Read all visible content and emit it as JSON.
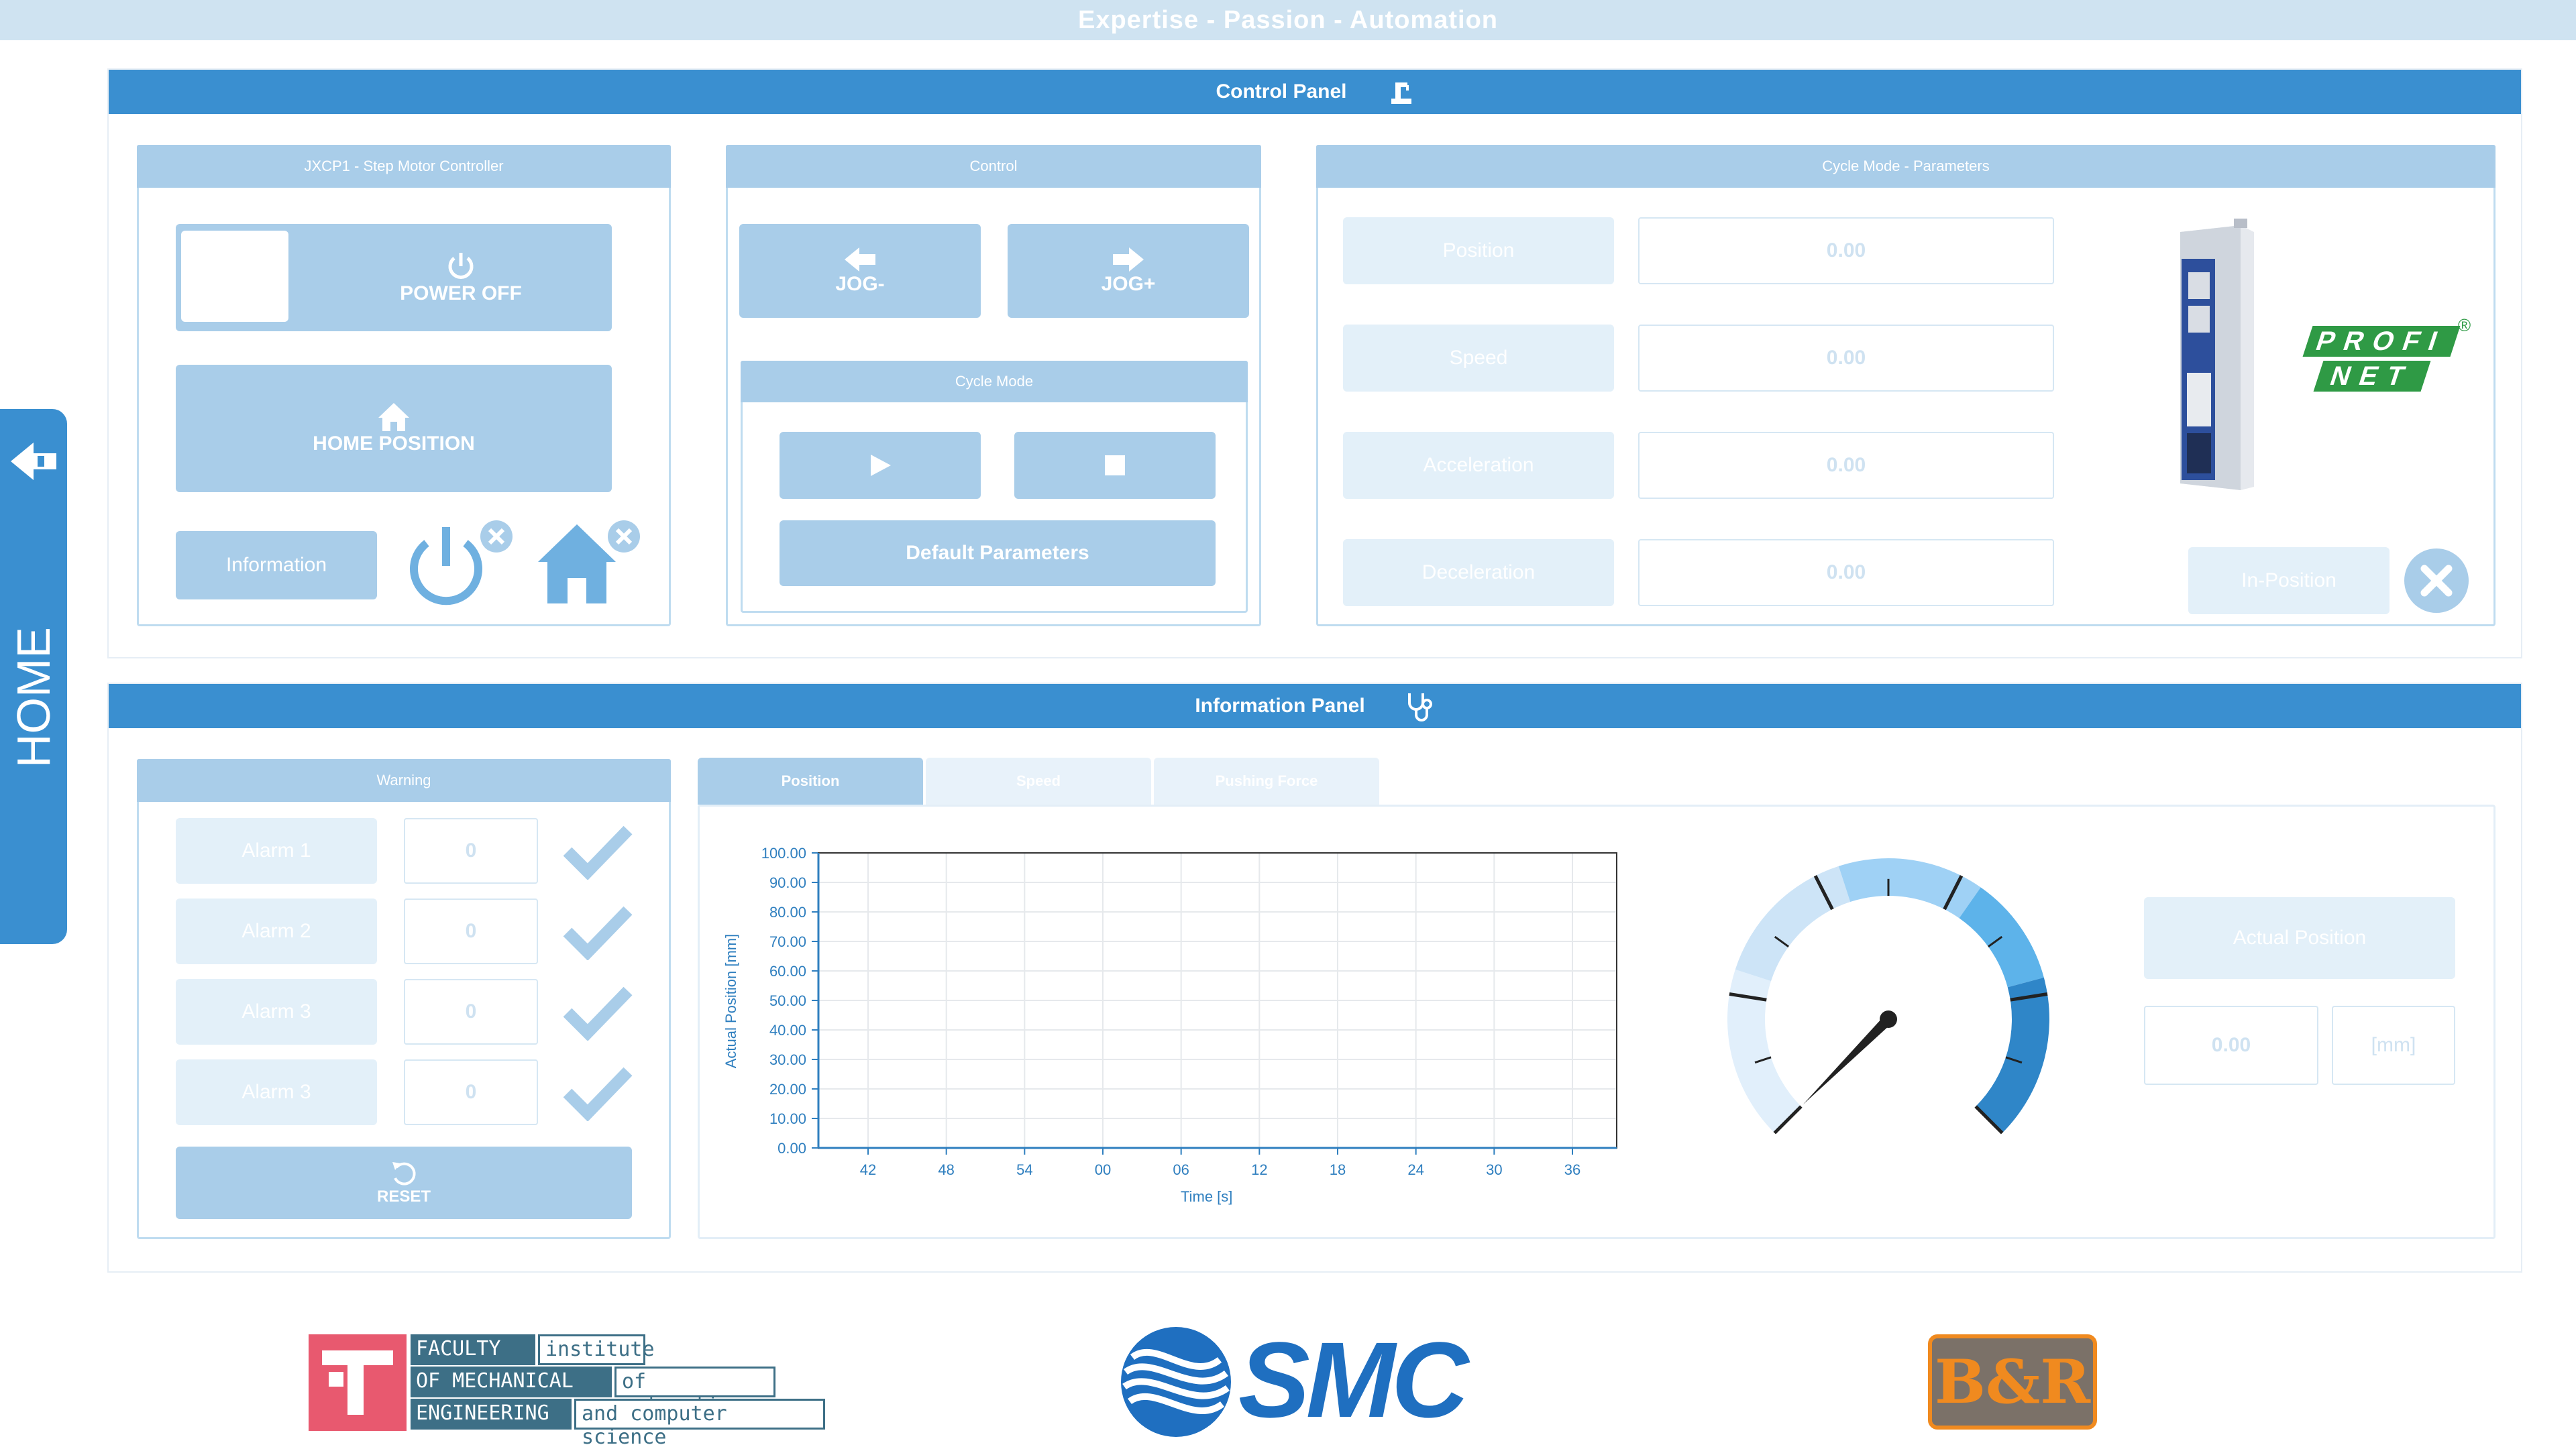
{
  "banner": {
    "text": "Expertise - Passion - Automation"
  },
  "side_tab": {
    "label": "HOME",
    "icon": "home-back-icon"
  },
  "control_panel": {
    "title": "Control Panel",
    "icon": "robot-arm-icon",
    "controller": {
      "title": "JXCP1 - Step Motor Controller",
      "power_button": "POWER OFF",
      "home_button": "HOME POSITION",
      "info_button": "Information",
      "power_status_icon": "power-status-icon",
      "home_status_icon": "home-status-icon"
    },
    "control": {
      "title": "Control",
      "jog_minus": "JOG-",
      "jog_plus": "JOG+",
      "cycle_mode_title": "Cycle Mode",
      "play_icon": "play-icon",
      "stop_icon": "stop-icon",
      "default_params": "Default Parameters"
    },
    "cycle_params": {
      "title": "Cycle Mode - Parameters",
      "rows": [
        {
          "label": "Position",
          "value": "0.00"
        },
        {
          "label": "Speed",
          "value": "0.00"
        },
        {
          "label": "Acceleration",
          "value": "0.00"
        },
        {
          "label": "Deceleration",
          "value": "0.00"
        }
      ],
      "in_position": "In-Position",
      "profinet_top": "PROFI",
      "profinet_bottom": "NET",
      "registered": "®"
    }
  },
  "information_panel": {
    "title": "Information Panel",
    "icon": "stethoscope-icon",
    "warning": {
      "title": "Warning",
      "alarms": [
        {
          "label": "Alarm 1",
          "value": "0"
        },
        {
          "label": "Alarm 2",
          "value": "0"
        },
        {
          "label": "Alarm 3",
          "value": "0"
        },
        {
          "label": "Alarm 3",
          "value": "0"
        }
      ],
      "reset": "RESET"
    },
    "tabs": [
      "Position",
      "Speed",
      "Pushing Force"
    ],
    "actual_position": {
      "label": "Actual Position",
      "value": "0.00",
      "unit": "[mm]"
    }
  },
  "chart_data": {
    "type": "line",
    "ylabel": "Actual Position [mm]",
    "xlabel": "Time [s]",
    "y_ticks": [
      "100.00",
      "90.00",
      "80.00",
      "70.00",
      "60.00",
      "50.00",
      "40.00",
      "30.00",
      "20.00",
      "10.00",
      "0.00"
    ],
    "x_ticks": [
      "42",
      "48",
      "54",
      "00",
      "06",
      "12",
      "18",
      "24",
      "30",
      "36"
    ],
    "ylim": [
      0,
      100
    ],
    "series": [
      {
        "values": []
      }
    ]
  },
  "gauge": {
    "value_fraction": 0.0
  },
  "footer": {
    "faculty_lines": [
      "FACULTY",
      "OF MECHANICAL",
      "ENGINEERING"
    ],
    "institute_lines": [
      "institute",
      "of automation",
      "and computer science"
    ],
    "smc": "SMC",
    "br": "B&R"
  }
}
